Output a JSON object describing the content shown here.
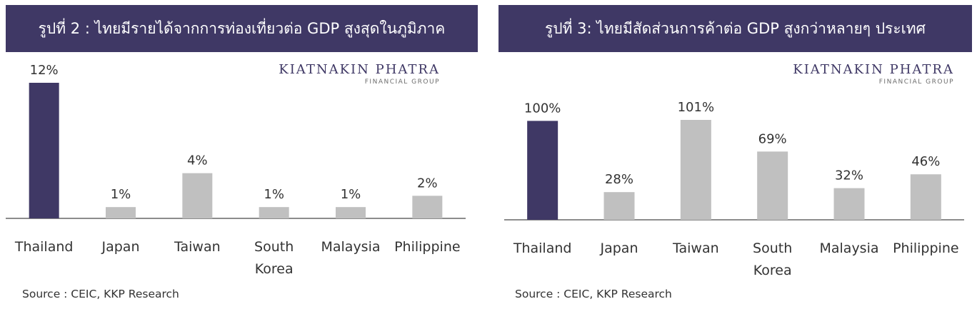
{
  "colors": {
    "header_bg": "#3f3865",
    "header_text": "#ffffff",
    "highlight_bar": "#3f3865",
    "bar": "#c0c0c0",
    "axis": "#8c8c8c",
    "logo": "#3f3865"
  },
  "logo": {
    "main": "KIATNAKIN PHATRA",
    "sub": "FINANCIAL GROUP"
  },
  "chart_data": [
    {
      "type": "bar",
      "title": "รูปที่ 2 : ไทยมีรายได้จากการท่องเที่ยวต่อ GDP สูงสุดในภูมิภาค",
      "categories": [
        "Thailand",
        "Japan",
        "Taiwan",
        "South Korea",
        "Malaysia",
        "Philippine"
      ],
      "values": [
        12,
        1,
        4,
        1,
        1,
        2
      ],
      "value_labels": [
        "12%",
        "1%",
        "4%",
        "1%",
        "1%",
        "2%"
      ],
      "highlight": "Thailand",
      "source": "Source : CEIC, KKP Research"
    },
    {
      "type": "bar",
      "title": "รูปที่ 3: ไทยมีสัดส่วนการค้าต่อ GDP สูงกว่าหลายๆ ประเทศ",
      "categories": [
        "Thailand",
        "Japan",
        "Taiwan",
        "South Korea",
        "Malaysia",
        "Philippine"
      ],
      "values": [
        100,
        28,
        101,
        69,
        32,
        46
      ],
      "value_labels": [
        "100%",
        "28%",
        "101%",
        "69%",
        "32%",
        "46%"
      ],
      "highlight": "Thailand",
      "source": "Source : CEIC, KKP Research"
    }
  ]
}
